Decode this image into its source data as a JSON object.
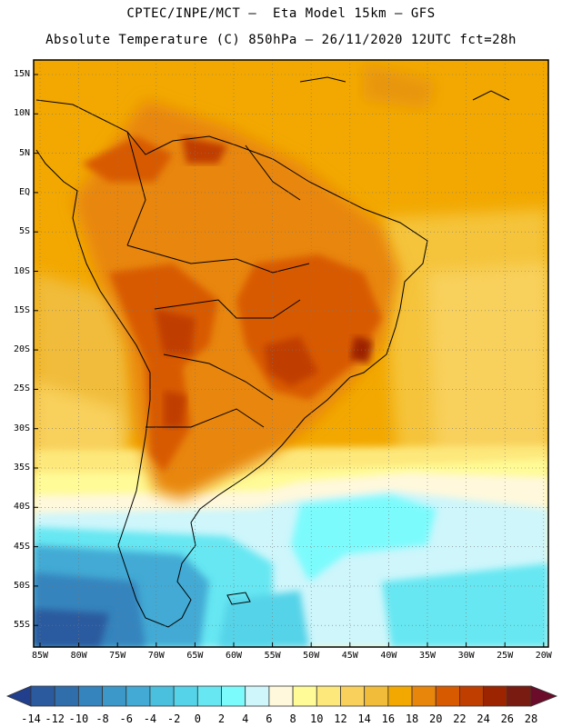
{
  "header": {
    "line1": "CPTEC/INPE/MCT –  Eta Model 15km – GFS",
    "line2": "Absolute Temperature (C) 850hPa – 26/11/2020 12UTC fct=28h"
  },
  "map": {
    "lat_ticks": [
      "15N",
      "10N",
      "5N",
      "EQ",
      "5S",
      "10S",
      "15S",
      "20S",
      "25S",
      "30S",
      "35S",
      "40S",
      "45S",
      "50S",
      "55S"
    ],
    "lon_ticks": [
      "85W",
      "80W",
      "75W",
      "70W",
      "65W",
      "60W",
      "55W",
      "50W",
      "45W",
      "40W",
      "35W",
      "30W",
      "25W",
      "20W"
    ]
  },
  "colorbar": {
    "labels": [
      "-14",
      "-12",
      "-10",
      "-8",
      "-6",
      "-4",
      "-2",
      "0",
      "2",
      "4",
      "6",
      "8",
      "10",
      "12",
      "14",
      "16",
      "18",
      "20",
      "22",
      "24",
      "26",
      "28"
    ],
    "colors": [
      "#223f8e",
      "#2c5a9f",
      "#2f6eab",
      "#3584bd",
      "#3c98c9",
      "#42aad4",
      "#4bbfde",
      "#55d3e8",
      "#66e7f2",
      "#7cfbfd",
      "#cef6fb",
      "#fff8dc",
      "#fffb96",
      "#fde87c",
      "#f8d05b",
      "#f1bc3a",
      "#f2a800",
      "#e8860c",
      "#d85a00",
      "#c03e00",
      "#9c2400",
      "#7a1b12",
      "#6a0c2a"
    ]
  }
}
